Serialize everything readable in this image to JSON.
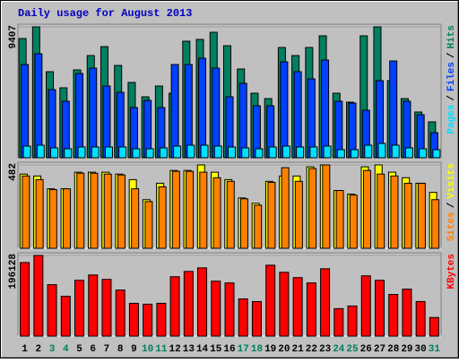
{
  "title": "Daily usage for August 2013",
  "legend_separator": "/",
  "chart_data": [
    {
      "type": "bar",
      "ylim": [
        0,
        9407
      ],
      "yticks": [
        9407
      ],
      "series": [
        {
          "name": "Pages",
          "color": "#00E0FF",
          "values": [
            838,
            902,
            709,
            644,
            773,
            773,
            773,
            773,
            644,
            644,
            709,
            838,
            902,
            902,
            838,
            773,
            709,
            644,
            773,
            838,
            773,
            773,
            838,
            580,
            580,
            902,
            1031,
            902,
            709,
            644,
            580
          ]
        },
        {
          "name": "Files",
          "color": "#0040FF",
          "values": [
            6701,
            7474,
            4897,
            4059,
            6056,
            6443,
            5154,
            4703,
            3608,
            4124,
            3608,
            6701,
            6701,
            7152,
            6443,
            4381,
            5348,
            3737,
            3737,
            6894,
            6185,
            5670,
            7023,
            4059,
            3930,
            3415,
            5541,
            6958,
            4059,
            3093,
            1804
          ]
        },
        {
          "name": "Hits",
          "color": "#008060",
          "values": [
            8569,
            9407,
            6185,
            5026,
            6314,
            7345,
            7989,
            6636,
            5412,
            4381,
            5154,
            4639,
            8376,
            8505,
            9020,
            8054,
            6378,
            4639,
            4252,
            7925,
            7345,
            7925,
            8763,
            4639,
            3995,
            8763,
            9407,
            5541,
            4252,
            3286,
            2577
          ]
        }
      ]
    },
    {
      "type": "bar",
      "ylim": [
        0,
        482
      ],
      "yticks": [
        482
      ],
      "series": [
        {
          "name": "Sites",
          "color": "#FF8000",
          "values": [
            418,
            397,
            339,
            344,
            434,
            434,
            429,
            424,
            344,
            270,
            355,
            445,
            445,
            440,
            408,
            387,
            286,
            249,
            381,
            466,
            387,
            461,
            482,
            334,
            307,
            450,
            429,
            418,
            376,
            376,
            281
          ]
        },
        {
          "name": "Visits",
          "color": "#FFFF00",
          "values": [
            429,
            418,
            344,
            344,
            440,
            440,
            440,
            429,
            397,
            281,
            376,
            450,
            450,
            482,
            440,
            397,
            291,
            260,
            387,
            418,
            418,
            471,
            482,
            334,
            313,
            471,
            482,
            440,
            408,
            376,
            323
          ]
        }
      ]
    },
    {
      "type": "bar",
      "ylim": [
        0,
        196128
      ],
      "yticks": [
        196128
      ],
      "categories": [
        "1",
        "2",
        "3",
        "4",
        "5",
        "6",
        "7",
        "8",
        "9",
        "10",
        "11",
        "12",
        "13",
        "14",
        "15",
        "16",
        "17",
        "18",
        "19",
        "20",
        "21",
        "22",
        "23",
        "24",
        "25",
        "26",
        "27",
        "28",
        "29",
        "30",
        "31"
      ],
      "category_colors": [
        "#000000",
        "#000000",
        "#008060",
        "#008060",
        "#000000",
        "#000000",
        "#000000",
        "#000000",
        "#000000",
        "#008060",
        "#008060",
        "#000000",
        "#000000",
        "#000000",
        "#000000",
        "#000000",
        "#008060",
        "#008060",
        "#000000",
        "#000000",
        "#000000",
        "#000000",
        "#000000",
        "#008060",
        "#008060",
        "#000000",
        "#000000",
        "#000000",
        "#000000",
        "#000000",
        "#008060"
      ],
      "series": [
        {
          "name": "KBytes",
          "color": "#FF0000",
          "values": [
            178865,
            196128,
            124990,
            96975,
            135765,
            148695,
            137920,
            112060,
            79735,
            77580,
            79735,
            144385,
            157315,
            165935,
            133610,
            129300,
            90510,
            84045,
            172400,
            155160,
            142230,
            129300,
            163780,
            66805,
            73270,
            146540,
            135765,
            101285,
            114215,
            84045,
            45255
          ]
        }
      ]
    }
  ]
}
